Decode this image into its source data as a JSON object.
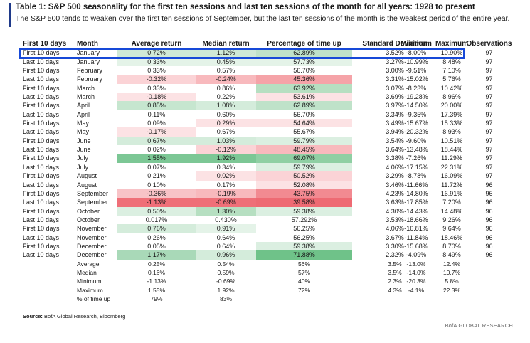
{
  "title": "Table 1: S&P 500 seasonality for the first ten sessions and last ten sessions of the month for all years: 1928 to present",
  "subtitle": "The S&P 500 tends to weaken over the first ten sessions of September, but the last ten sessions of the month is the weakest period of the entire year.",
  "headers": {
    "label": "First 10 days",
    "month": "Month",
    "avg": "Average return",
    "med": "Median return",
    "pct": "Percentage of time up",
    "sd": "Standard Deviation",
    "min": "Minimum",
    "max": "Maximum",
    "obs": "Observations"
  },
  "rows": [
    {
      "label": "First 10 days",
      "month": "January",
      "avg": "0.72%",
      "med": "1.12%",
      "pct": "62.89%",
      "sd": "3.52%",
      "min": "-8.00%",
      "max": "10.90%",
      "obs": "97",
      "avg_bg": "#cfe9d6",
      "med_bg": "#cfe9d6",
      "pct_bg": "#bfe2c9"
    },
    {
      "label": "Last 10 days",
      "month": "January",
      "avg": "0.33%",
      "med": "0.45%",
      "pct": "57.73%",
      "sd": "3.27%",
      "min": "-10.99%",
      "max": "8.48%",
      "obs": "97",
      "avg_bg": "#e4f3e8",
      "med_bg": "#e4f3e8",
      "pct_bg": "#e4f3e8"
    },
    {
      "label": "First 10 days",
      "month": "February",
      "avg": "0.33%",
      "med": "0.57%",
      "pct": "56.70%",
      "sd": "3.00%",
      "min": "-9.51%",
      "max": "7.10%",
      "obs": "97",
      "avg_bg": "#ffffff",
      "med_bg": "#ffffff",
      "pct_bg": "#ffffff"
    },
    {
      "label": "Last 10 days",
      "month": "February",
      "avg": "-0.32%",
      "med": "-0.24%",
      "pct": "45.36%",
      "sd": "3.31%",
      "min": "-15.02%",
      "max": "5.76%",
      "obs": "97",
      "avg_bg": "#fbd3d6",
      "med_bg": "#f8b9bd",
      "pct_bg": "#f5a3a8"
    },
    {
      "label": "First 10 days",
      "month": "March",
      "avg": "0.33%",
      "med": "0.86%",
      "pct": "63.92%",
      "sd": "3.07%",
      "min": "-8.23%",
      "max": "10.42%",
      "obs": "97",
      "avg_bg": "#ffffff",
      "med_bg": "#ffffff",
      "pct_bg": "#b6dfc1"
    },
    {
      "label": "Last 10 days",
      "month": "March",
      "avg": "-0.18%",
      "med": "0.22%",
      "pct": "53.61%",
      "sd": "3.69%",
      "min": "-19.28%",
      "max": "8.96%",
      "obs": "97",
      "avg_bg": "#fce2e4",
      "med_bg": "#ffffff",
      "pct_bg": "#fce2e4"
    },
    {
      "label": "First 10 days",
      "month": "April",
      "avg": "0.85%",
      "med": "1.08%",
      "pct": "62.89%",
      "sd": "3.97%",
      "min": "-14.50%",
      "max": "20.00%",
      "obs": "97",
      "avg_bg": "#c6e6cf",
      "med_bg": "#d4ecdb",
      "pct_bg": "#bfe2c9"
    },
    {
      "label": "Last 10 days",
      "month": "April",
      "avg": "0.11%",
      "med": "0.60%",
      "pct": "56.70%",
      "sd": "3.34%",
      "min": "-9.35%",
      "max": "17.39%",
      "obs": "97",
      "avg_bg": "#ffffff",
      "med_bg": "#ffffff",
      "pct_bg": "#ffffff"
    },
    {
      "label": "First 10 days",
      "month": "May",
      "avg": "0.09%",
      "med": "0.29%",
      "pct": "54.64%",
      "sd": "3.49%",
      "min": "-15.67%",
      "max": "15.33%",
      "obs": "97",
      "avg_bg": "#ffffff",
      "med_bg": "#fce2e4",
      "pct_bg": "#fce2e4"
    },
    {
      "label": "Last 10 days",
      "month": "May",
      "avg": "-0.17%",
      "med": "0.67%",
      "pct": "55.67%",
      "sd": "3.94%",
      "min": "-20.32%",
      "max": "8.93%",
      "obs": "97",
      "avg_bg": "#fce2e4",
      "med_bg": "#ffffff",
      "pct_bg": "#ffffff"
    },
    {
      "label": "First 10 days",
      "month": "June",
      "avg": "0.67%",
      "med": "1.03%",
      "pct": "59.79%",
      "sd": "3.54%",
      "min": "-9.60%",
      "max": "10.51%",
      "obs": "97",
      "avg_bg": "#d4ecdb",
      "med_bg": "#d4ecdb",
      "pct_bg": "#dbefe1"
    },
    {
      "label": "Last 10 days",
      "month": "June",
      "avg": "0.02%",
      "med": "-0.12%",
      "pct": "48.45%",
      "sd": "3.64%",
      "min": "-13.48%",
      "max": "18.44%",
      "obs": "97",
      "avg_bg": "#ffffff",
      "med_bg": "#fbd3d6",
      "pct_bg": "#f8b9bd"
    },
    {
      "label": "First 10 days",
      "month": "July",
      "avg": "1.55%",
      "med": "1.92%",
      "pct": "69.07%",
      "sd": "3.38%",
      "min": "-7.26%",
      "max": "11.29%",
      "obs": "97",
      "avg_bg": "#7cc795",
      "med_bg": "#7cc795",
      "pct_bg": "#8fcfa3"
    },
    {
      "label": "Last 10 days",
      "month": "July",
      "avg": "0.07%",
      "med": "0.34%",
      "pct": "59.79%",
      "sd": "4.06%",
      "min": "-17.15%",
      "max": "22.31%",
      "obs": "97",
      "avg_bg": "#ffffff",
      "med_bg": "#ffffff",
      "pct_bg": "#dbefe1"
    },
    {
      "label": "First 10 days",
      "month": "August",
      "avg": "0.21%",
      "med": "0.02%",
      "pct": "50.52%",
      "sd": "3.29%",
      "min": "-8.78%",
      "max": "16.09%",
      "obs": "97",
      "avg_bg": "#ffffff",
      "med_bg": "#fce2e4",
      "pct_bg": "#fbd3d6"
    },
    {
      "label": "Last 10 days",
      "month": "August",
      "avg": "0.10%",
      "med": "0.17%",
      "pct": "52.08%",
      "sd": "3.46%",
      "min": "-11.66%",
      "max": "11.72%",
      "obs": "96",
      "avg_bg": "#ffffff",
      "med_bg": "#ffffff",
      "pct_bg": "#fce2e4"
    },
    {
      "label": "First 10 days",
      "month": "September",
      "avg": "-0.36%",
      "med": "-0.19%",
      "pct": "43.75%",
      "sd": "4.23%",
      "min": "-14.80%",
      "max": "16.91%",
      "obs": "96",
      "avg_bg": "#f8c3c7",
      "med_bg": "#f8b9bd",
      "pct_bg": "#f28a91"
    },
    {
      "label": "Last 10 days",
      "month": "September",
      "avg": "-1.13%",
      "med": "-0.69%",
      "pct": "39.58%",
      "sd": "3.63%",
      "min": "-17.85%",
      "max": "7.20%",
      "obs": "96",
      "avg_bg": "#ef6f78",
      "med_bg": "#ef6f78",
      "pct_bg": "#ee6a73"
    },
    {
      "label": "First 10 days",
      "month": "October",
      "avg": "0.50%",
      "med": "1.30%",
      "pct": "59.38%",
      "sd": "4.30%",
      "min": "-14.43%",
      "max": "14.48%",
      "obs": "96",
      "avg_bg": "#dbefe1",
      "med_bg": "#b6dfc1",
      "pct_bg": "#dbefe1"
    },
    {
      "label": "Last 10 days",
      "month": "October",
      "avg": "0.017%",
      "med": "0.430%",
      "pct": "57.292%",
      "sd": "3.53%",
      "min": "-18.66%",
      "max": "9.26%",
      "obs": "96",
      "avg_bg": "#ffffff",
      "med_bg": "#ffffff",
      "pct_bg": "#ffffff"
    },
    {
      "label": "First 10 days",
      "month": "November",
      "avg": "0.76%",
      "med": "0.91%",
      "pct": "56.25%",
      "sd": "4.06%",
      "min": "-16.81%",
      "max": "9.64%",
      "obs": "96",
      "avg_bg": "#d4ecdb",
      "med_bg": "#e4f3e8",
      "pct_bg": "#ffffff"
    },
    {
      "label": "Last 10 days",
      "month": "November",
      "avg": "0.26%",
      "med": "0.64%",
      "pct": "56.25%",
      "sd": "3.67%",
      "min": "-11.84%",
      "max": "18.46%",
      "obs": "96",
      "avg_bg": "#ffffff",
      "med_bg": "#ffffff",
      "pct_bg": "#ffffff"
    },
    {
      "label": "First 10 days",
      "month": "December",
      "avg": "0.05%",
      "med": "0.64%",
      "pct": "59.38%",
      "sd": "3.30%",
      "min": "-15.68%",
      "max": "8.70%",
      "obs": "96",
      "avg_bg": "#ffffff",
      "med_bg": "#ffffff",
      "pct_bg": "#dbefe1"
    },
    {
      "label": "Last 10 days",
      "month": "December",
      "avg": "1.17%",
      "med": "0.96%",
      "pct": "71.88%",
      "sd": "2.32%",
      "min": "-4.09%",
      "max": "8.49%",
      "obs": "96",
      "avg_bg": "#a9d9b8",
      "med_bg": "#d4ecdb",
      "pct_bg": "#6fc289"
    }
  ],
  "summary": [
    {
      "label": "Average",
      "avg": "0.25%",
      "med": "0.54%",
      "pct": "56%",
      "sd": "3.5%",
      "min": "-13.0%",
      "max": "12.4%"
    },
    {
      "label": "Median",
      "avg": "0.16%",
      "med": "0.59%",
      "pct": "57%",
      "sd": "3.5%",
      "min": "-14.0%",
      "max": "10.7%"
    },
    {
      "label": "Minimum",
      "avg": "-1.13%",
      "med": "-0.69%",
      "pct": "40%",
      "sd": "2.3%",
      "min": "-20.3%",
      "max": "5.8%"
    },
    {
      "label": "Maximum",
      "avg": "1.55%",
      "med": "1.92%",
      "pct": "72%",
      "sd": "4.3%",
      "min": "-4.1%",
      "max": "22.3%"
    },
    {
      "label": "% of time up",
      "avg": "79%",
      "med": "83%",
      "pct": "",
      "sd": "",
      "min": "",
      "max": ""
    }
  ],
  "source_label": "Source:",
  "source_text": " BofA Global Research, Bloomberg",
  "brand": "BofA GLOBAL RESEARCH",
  "colors": {
    "accent": "#1f3a8a",
    "highlight": "#1749d8"
  }
}
